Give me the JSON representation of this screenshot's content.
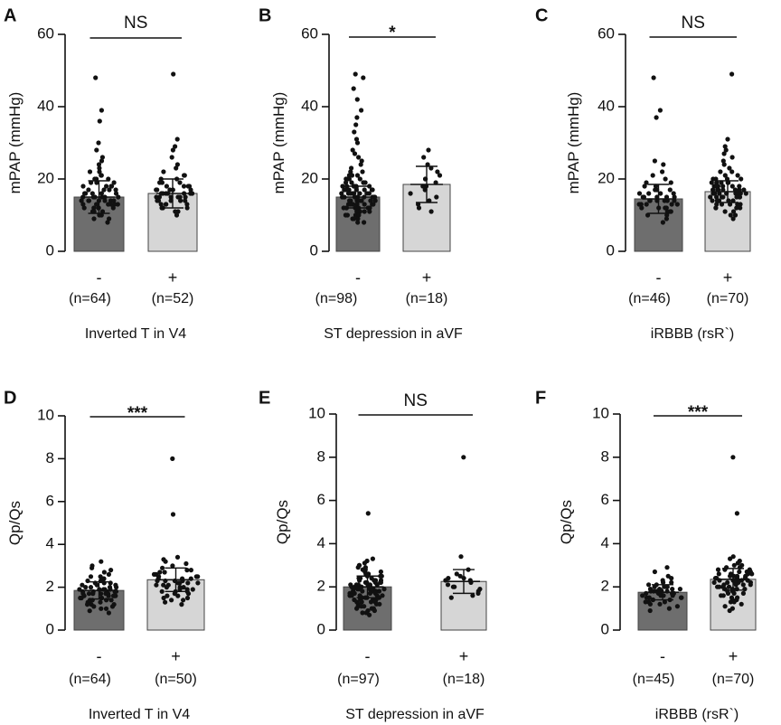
{
  "chart_data": [
    {
      "type": "bar",
      "panel": "A",
      "ylabel": "mPAP (mmHg)",
      "ylim": [
        0,
        60
      ],
      "yticks": [
        "0",
        "20",
        "40",
        "60"
      ],
      "significance": "NS",
      "xlabel": "Inverted T in V4",
      "categories": [
        "-",
        "+"
      ],
      "n_labels": [
        "(n=64)",
        "(n=52)"
      ],
      "means": [
        15,
        16
      ],
      "sd": [
        4.5,
        4
      ],
      "colors": [
        "#6e6e6e",
        "#d6d6d6"
      ],
      "points": [
        [
          48,
          39,
          36,
          30,
          28,
          26,
          25,
          24,
          23,
          22,
          22,
          21,
          21,
          20,
          20,
          20,
          19,
          19,
          19,
          18,
          18,
          18,
          18,
          17,
          17,
          17,
          17,
          16,
          16,
          16,
          16,
          16,
          15,
          15,
          15,
          15,
          15,
          15,
          14,
          14,
          14,
          14,
          14,
          14,
          14,
          13,
          13,
          13,
          13,
          13,
          13,
          12,
          12,
          12,
          12,
          12,
          11,
          11,
          11,
          10,
          10,
          9,
          9,
          8
        ],
        [
          49,
          31,
          29,
          28,
          26,
          24,
          23,
          22,
          21,
          21,
          20,
          20,
          19,
          19,
          19,
          18,
          18,
          18,
          18,
          17,
          17,
          17,
          17,
          17,
          16,
          16,
          16,
          16,
          16,
          16,
          16,
          15,
          15,
          15,
          15,
          15,
          15,
          14,
          14,
          14,
          14,
          14,
          13,
          13,
          13,
          13,
          12,
          12,
          12,
          11,
          11,
          10
        ]
      ]
    },
    {
      "type": "bar",
      "panel": "B",
      "ylabel": "mPAP (mmHg)",
      "ylim": [
        0,
        60
      ],
      "yticks": [
        "0",
        "20",
        "40",
        "60"
      ],
      "significance": "*",
      "xlabel": "ST depression in aVF",
      "categories": [
        "-",
        "+"
      ],
      "n_labels": [
        "(n=98)",
        "(n=18)"
      ],
      "means": [
        15,
        18.5
      ],
      "sd": [
        3,
        5
      ],
      "colors": [
        "#6e6e6e",
        "#d6d6d6"
      ],
      "points": [
        [
          49,
          48,
          45,
          42,
          39,
          37,
          35,
          33,
          31,
          30,
          28,
          27,
          26,
          25,
          24,
          23,
          22,
          22,
          21,
          21,
          21,
          20,
          20,
          20,
          20,
          19,
          19,
          19,
          19,
          19,
          18,
          18,
          18,
          18,
          18,
          18,
          17,
          17,
          17,
          17,
          17,
          17,
          17,
          16,
          16,
          16,
          16,
          16,
          16,
          16,
          16,
          15,
          15,
          15,
          15,
          15,
          15,
          15,
          15,
          15,
          14,
          14,
          14,
          14,
          14,
          14,
          14,
          14,
          14,
          13,
          13,
          13,
          13,
          13,
          13,
          13,
          13,
          12,
          12,
          12,
          12,
          12,
          12,
          12,
          11,
          11,
          11,
          11,
          11,
          10,
          10,
          10,
          10,
          9,
          9,
          9,
          8,
          8
        ],
        [
          28,
          26,
          24,
          23,
          22,
          21,
          20,
          20,
          19,
          18,
          18,
          17,
          16,
          15,
          14,
          13,
          12,
          11
        ]
      ]
    },
    {
      "type": "bar",
      "panel": "C",
      "ylabel": "mPAP (mmHg)",
      "ylim": [
        0,
        60
      ],
      "yticks": [
        "0",
        "20",
        "40",
        "60"
      ],
      "significance": "NS",
      "xlabel": "iRBBB (rsR`)",
      "categories": [
        "-",
        "+"
      ],
      "n_labels": [
        "(n=46)",
        "(n=70)"
      ],
      "means": [
        14.5,
        16.5
      ],
      "sd": [
        4,
        3
      ],
      "colors": [
        "#6e6e6e",
        "#d6d6d6"
      ],
      "points": [
        [
          48,
          39,
          37,
          25,
          24,
          22,
          21,
          20,
          19,
          19,
          18,
          18,
          17,
          17,
          17,
          16,
          16,
          16,
          16,
          15,
          15,
          15,
          15,
          15,
          14,
          14,
          14,
          14,
          14,
          14,
          13,
          13,
          13,
          13,
          13,
          12,
          12,
          12,
          12,
          11,
          11,
          11,
          10,
          10,
          9,
          8
        ],
        [
          49,
          31,
          29,
          28,
          27,
          26,
          25,
          24,
          23,
          22,
          22,
          21,
          21,
          20,
          20,
          20,
          20,
          19,
          19,
          19,
          19,
          19,
          18,
          18,
          18,
          18,
          18,
          18,
          17,
          17,
          17,
          17,
          17,
          17,
          17,
          16,
          16,
          16,
          16,
          16,
          16,
          16,
          16,
          15,
          15,
          15,
          15,
          15,
          15,
          15,
          14,
          14,
          14,
          14,
          14,
          14,
          13,
          13,
          13,
          13,
          13,
          12,
          12,
          12,
          12,
          11,
          11,
          10,
          10,
          9
        ]
      ]
    },
    {
      "type": "bar",
      "panel": "D",
      "ylabel": "Qp/Qs",
      "ylim": [
        0,
        10
      ],
      "yticks": [
        "0",
        "2",
        "4",
        "6",
        "8",
        "10"
      ],
      "significance": "***",
      "xlabel": "Inverted T in V4",
      "categories": [
        "-",
        "+"
      ],
      "n_labels": [
        "(n=64)",
        "(n=50)"
      ],
      "means": [
        1.85,
        2.35
      ],
      "sd": [
        0.4,
        0.55
      ],
      "colors": [
        "#6e6e6e",
        "#d6d6d6"
      ],
      "points": [
        [
          3.2,
          3.0,
          2.9,
          2.8,
          2.7,
          2.6,
          2.5,
          2.5,
          2.4,
          2.4,
          2.3,
          2.3,
          2.2,
          2.2,
          2.2,
          2.1,
          2.1,
          2.1,
          2.0,
          2.0,
          2.0,
          2.0,
          1.9,
          1.9,
          1.9,
          1.9,
          1.9,
          1.8,
          1.8,
          1.8,
          1.8,
          1.8,
          1.8,
          1.7,
          1.7,
          1.7,
          1.7,
          1.7,
          1.7,
          1.6,
          1.6,
          1.6,
          1.6,
          1.6,
          1.5,
          1.5,
          1.5,
          1.5,
          1.4,
          1.4,
          1.4,
          1.4,
          1.3,
          1.3,
          1.3,
          1.2,
          1.2,
          1.2,
          1.1,
          1.1,
          1.0,
          1.0,
          0.9,
          0.8
        ],
        [
          8.0,
          5.4,
          3.4,
          3.3,
          3.2,
          3.1,
          3.0,
          2.9,
          2.8,
          2.8,
          2.7,
          2.7,
          2.6,
          2.6,
          2.5,
          2.5,
          2.5,
          2.4,
          2.4,
          2.4,
          2.3,
          2.3,
          2.3,
          2.3,
          2.2,
          2.2,
          2.2,
          2.2,
          2.1,
          2.1,
          2.1,
          2.0,
          2.0,
          2.0,
          1.9,
          1.9,
          1.9,
          1.8,
          1.8,
          1.8,
          1.7,
          1.7,
          1.6,
          1.6,
          1.5,
          1.5,
          1.4,
          1.4,
          1.3,
          1.2
        ]
      ]
    },
    {
      "type": "bar",
      "panel": "E",
      "ylabel": "Qp/Qs",
      "ylim": [
        0,
        10
      ],
      "yticks": [
        "0",
        "2",
        "4",
        "6",
        "8",
        "10"
      ],
      "significance": "NS",
      "xlabel": "ST depression in aVF",
      "categories": [
        "-",
        "+"
      ],
      "n_labels": [
        "(n=97)",
        "(n=18)"
      ],
      "means": [
        2.0,
        2.25
      ],
      "sd": [
        0.5,
        0.55
      ],
      "colors": [
        "#6e6e6e",
        "#d6d6d6"
      ],
      "points": [
        [
          5.4,
          3.3,
          3.2,
          3.1,
          3.0,
          3.0,
          2.9,
          2.9,
          2.8,
          2.8,
          2.7,
          2.7,
          2.6,
          2.6,
          2.6,
          2.5,
          2.5,
          2.5,
          2.4,
          2.4,
          2.4,
          2.4,
          2.3,
          2.3,
          2.3,
          2.3,
          2.2,
          2.2,
          2.2,
          2.2,
          2.2,
          2.1,
          2.1,
          2.1,
          2.1,
          2.1,
          2.1,
          2.0,
          2.0,
          2.0,
          2.0,
          2.0,
          2.0,
          2.0,
          1.9,
          1.9,
          1.9,
          1.9,
          1.9,
          1.9,
          1.9,
          1.8,
          1.8,
          1.8,
          1.8,
          1.8,
          1.8,
          1.8,
          1.7,
          1.7,
          1.7,
          1.7,
          1.7,
          1.7,
          1.6,
          1.6,
          1.6,
          1.6,
          1.6,
          1.6,
          1.5,
          1.5,
          1.5,
          1.5,
          1.5,
          1.4,
          1.4,
          1.4,
          1.4,
          1.3,
          1.3,
          1.3,
          1.3,
          1.2,
          1.2,
          1.2,
          1.1,
          1.1,
          1.1,
          1.0,
          1.0,
          1.0,
          0.9,
          0.9,
          0.8,
          0.8,
          0.7
        ],
        [
          8.0,
          3.4,
          2.8,
          2.6,
          2.5,
          2.4,
          2.4,
          2.3,
          2.3,
          2.2,
          2.1,
          2.0,
          2.0,
          1.9,
          1.8,
          1.7,
          1.6,
          1.5
        ]
      ]
    },
    {
      "type": "bar",
      "panel": "F",
      "ylabel": "Qp/Qs",
      "ylim": [
        0,
        10
      ],
      "yticks": [
        "0",
        "2",
        "4",
        "6",
        "8",
        "10"
      ],
      "significance": "***",
      "xlabel": "iRBBB (rsR`)",
      "categories": [
        "-",
        "+"
      ],
      "n_labels": [
        "(n=45)",
        "(n=70)"
      ],
      "means": [
        1.75,
        2.35
      ],
      "sd": [
        0.35,
        0.5
      ],
      "colors": [
        "#6e6e6e",
        "#d6d6d6"
      ],
      "points": [
        [
          2.9,
          2.7,
          2.5,
          2.4,
          2.3,
          2.2,
          2.2,
          2.1,
          2.1,
          2.0,
          2.0,
          2.0,
          1.9,
          1.9,
          1.9,
          1.9,
          1.8,
          1.8,
          1.8,
          1.8,
          1.8,
          1.7,
          1.7,
          1.7,
          1.7,
          1.7,
          1.6,
          1.6,
          1.6,
          1.6,
          1.5,
          1.5,
          1.5,
          1.5,
          1.4,
          1.4,
          1.4,
          1.3,
          1.3,
          1.3,
          1.2,
          1.2,
          1.1,
          1.0,
          0.9
        ],
        [
          8.0,
          5.4,
          3.4,
          3.3,
          3.2,
          3.1,
          3.0,
          3.0,
          2.9,
          2.9,
          2.8,
          2.8,
          2.8,
          2.7,
          2.7,
          2.7,
          2.6,
          2.6,
          2.6,
          2.6,
          2.5,
          2.5,
          2.5,
          2.5,
          2.5,
          2.4,
          2.4,
          2.4,
          2.4,
          2.4,
          2.3,
          2.3,
          2.3,
          2.3,
          2.3,
          2.2,
          2.2,
          2.2,
          2.2,
          2.2,
          2.1,
          2.1,
          2.1,
          2.1,
          2.0,
          2.0,
          2.0,
          2.0,
          1.9,
          1.9,
          1.9,
          1.9,
          1.8,
          1.8,
          1.8,
          1.7,
          1.7,
          1.7,
          1.6,
          1.6,
          1.5,
          1.5,
          1.4,
          1.4,
          1.3,
          1.3,
          1.2,
          1.1,
          1.0,
          0.9
        ]
      ]
    }
  ]
}
